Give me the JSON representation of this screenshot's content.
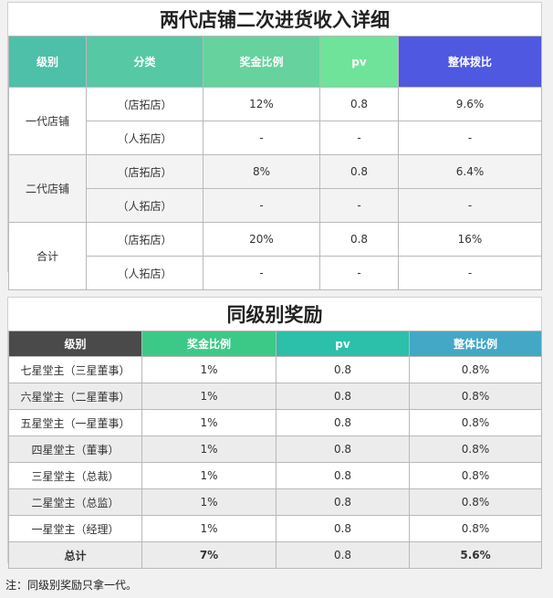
{
  "table1": {
    "title": "两代店铺二次进货收入详细",
    "headers": [
      "级别",
      "分类",
      "奖金比例",
      "pv",
      "整体拨比"
    ],
    "groups": [
      {
        "level": "一代店铺",
        "rows": [
          {
            "category": "（店拓店）",
            "bonus": "12%",
            "pv": "0.8",
            "overall": "9.6%"
          },
          {
            "category": "（人拓店）",
            "bonus": "-",
            "pv": "-",
            "overall": "-"
          }
        ]
      },
      {
        "level": "二代店铺",
        "rows": [
          {
            "category": "（店拓店）",
            "bonus": "8%",
            "pv": "0.8",
            "overall": "6.4%"
          },
          {
            "category": "（人拓店）",
            "bonus": "-",
            "pv": "-",
            "overall": "-"
          }
        ]
      },
      {
        "level": "合计",
        "rows": [
          {
            "category": "（店拓店）",
            "bonus": "20%",
            "pv": "0.8",
            "overall": "16%"
          },
          {
            "category": "（人拓店）",
            "bonus": "-",
            "pv": "-",
            "overall": "-"
          }
        ]
      }
    ]
  },
  "table2": {
    "title": "同级别奖励",
    "headers": [
      "级别",
      "奖金比例",
      "pv",
      "整体比例"
    ],
    "rows": [
      {
        "level": "七星堂主（三星董事）",
        "bonus": "1%",
        "pv": "0.8",
        "overall": "0.8%"
      },
      {
        "level": "六星堂主（二星董事）",
        "bonus": "1%",
        "pv": "0.8",
        "overall": "0.8%"
      },
      {
        "level": "五星堂主（一星董事）",
        "bonus": "1%",
        "pv": "0.8",
        "overall": "0.8%"
      },
      {
        "level": "四星堂主（董事）",
        "bonus": "1%",
        "pv": "0.8",
        "overall": "0.8%"
      },
      {
        "level": "三星堂主（总裁）",
        "bonus": "1%",
        "pv": "0.8",
        "overall": "0.8%"
      },
      {
        "level": "二星堂主（总监）",
        "bonus": "1%",
        "pv": "0.8",
        "overall": "0.8%"
      },
      {
        "level": "一星堂主（经理）",
        "bonus": "1%",
        "pv": "0.8",
        "overall": "0.8%"
      }
    ],
    "total": {
      "level": "总计",
      "bonus": "7%",
      "pv": "0.8",
      "overall": "5.6%"
    }
  },
  "note": "注：同级别奖励只拿一代。"
}
